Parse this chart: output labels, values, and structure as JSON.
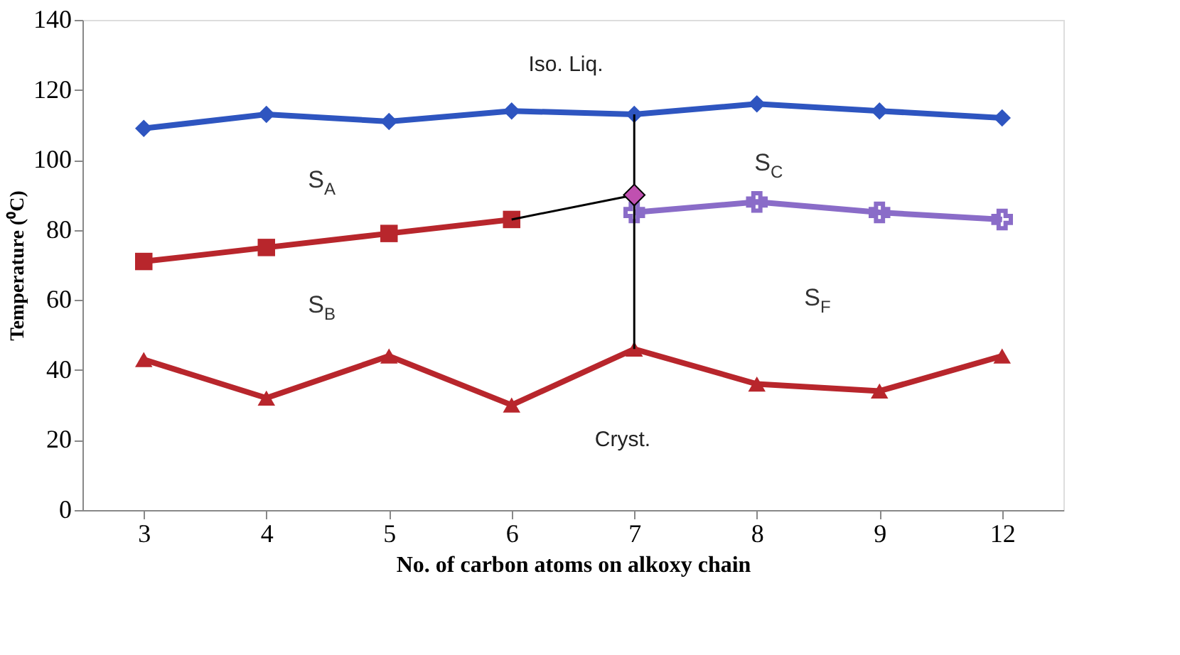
{
  "chart_data": {
    "type": "line",
    "xlabel": "No. of carbon atoms on alkoxy chain",
    "ylabel": "Temperature (⁰C)",
    "categories": [
      "3",
      "4",
      "5",
      "6",
      "7",
      "8",
      "9",
      "12"
    ],
    "ylim": [
      0,
      140
    ],
    "yticks": [
      0,
      20,
      40,
      60,
      80,
      100,
      120,
      140
    ],
    "grid": false,
    "series": [
      {
        "color": "#2e55c0",
        "marker": "diamond",
        "values": [
          109,
          113,
          111,
          114,
          113,
          116,
          114,
          112
        ]
      },
      {
        "color": "#b8262c",
        "marker": "square",
        "values": [
          71,
          75,
          79,
          83,
          null,
          null,
          null,
          null
        ]
      },
      {
        "color": "#b8262c",
        "marker": "triangle",
        "values": [
          43,
          32,
          44,
          30,
          46,
          36,
          34,
          44
        ]
      },
      {
        "color": "#8a6cc8",
        "marker": "cross",
        "values": [
          null,
          null,
          null,
          null,
          85,
          88,
          85,
          83
        ]
      },
      {
        "color": "#000000",
        "marker": "none",
        "x": [
          "6",
          "7"
        ],
        "values": [
          83,
          90
        ]
      },
      {
        "color": "#000000",
        "marker": "none",
        "x": [
          "7",
          "7"
        ],
        "values": [
          113,
          46
        ]
      },
      {
        "type": "scatter",
        "color": "#c050b0",
        "marker": "diamond",
        "x": [
          "7"
        ],
        "values": [
          90
        ]
      }
    ],
    "annotations": [
      "Iso. Liq.",
      "S$_{A}$",
      "S$_{B}$",
      "S$_{C}$",
      "S$_{F}$",
      "Cryst."
    ]
  }
}
